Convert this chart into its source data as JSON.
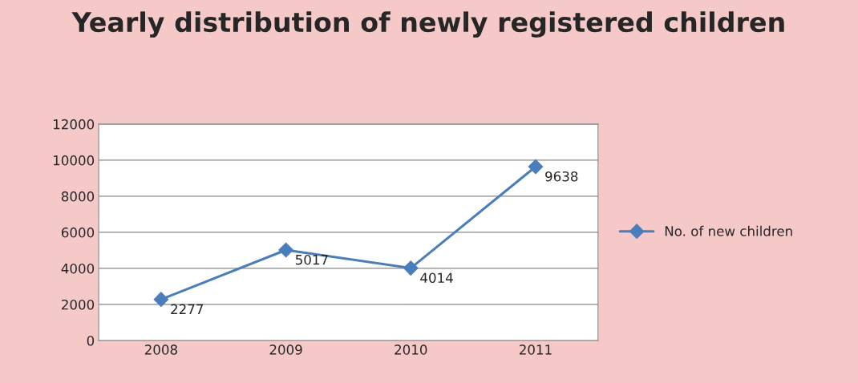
{
  "chart_data": {
    "type": "line",
    "title": "Yearly distribution of newly registered children",
    "categories": [
      "2008",
      "2009",
      "2010",
      "2011"
    ],
    "series": [
      {
        "name": "No. of new children",
        "color": "#4a7ebb",
        "values": [
          2277,
          5017,
          4014,
          9638
        ]
      }
    ],
    "ylim": [
      0,
      12000
    ],
    "yticks": [
      0,
      2000,
      4000,
      6000,
      8000,
      10000,
      12000
    ],
    "grid": "y",
    "legend": "right",
    "marker": "diamond",
    "line_style": "solid",
    "data_labels": true
  }
}
